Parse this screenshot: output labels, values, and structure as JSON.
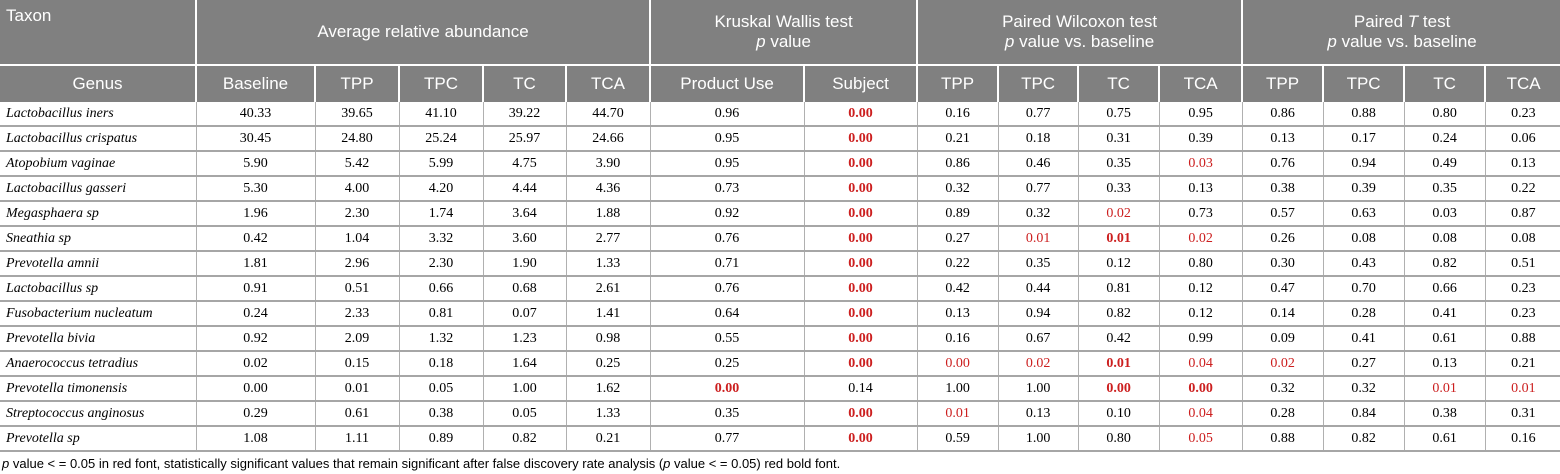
{
  "header": {
    "taxon": "Taxon",
    "avg": "Average relative abundance",
    "kw1": "Kruskal Wallis test",
    "kw2": "value",
    "wx1": "Paired Wilcoxon test",
    "wx2": "value vs. baseline",
    "tt1a": "Paired",
    "tt1b": "test",
    "tt2": "value vs. baseline",
    "p": "p",
    "t": "T"
  },
  "columns": [
    "Genus",
    "Baseline",
    "TPP",
    "TPC",
    "TC",
    "TCA",
    "Product Use",
    "Subject",
    "TPP",
    "TPC",
    "TC",
    "TCA",
    "TPP",
    "TPC",
    "TC",
    "TCA"
  ],
  "rows": [
    [
      "Lactobacillus iners",
      "40.33",
      "39.65",
      "41.10",
      "39.22",
      "44.70",
      "0.96",
      "0.00",
      "0.16",
      "0.77",
      "0.75",
      "0.95",
      "0.86",
      "0.88",
      "0.80",
      "0.23"
    ],
    [
      "Lactobacillus crispatus",
      "30.45",
      "24.80",
      "25.24",
      "25.97",
      "24.66",
      "0.95",
      "0.00",
      "0.21",
      "0.18",
      "0.31",
      "0.39",
      "0.13",
      "0.17",
      "0.24",
      "0.06"
    ],
    [
      "Atopobium vaginae",
      "5.90",
      "5.42",
      "5.99",
      "4.75",
      "3.90",
      "0.95",
      "0.00",
      "0.86",
      "0.46",
      "0.35",
      "0.03",
      "0.76",
      "0.94",
      "0.49",
      "0.13"
    ],
    [
      "Lactobacillus gasseri",
      "5.30",
      "4.00",
      "4.20",
      "4.44",
      "4.36",
      "0.73",
      "0.00",
      "0.32",
      "0.77",
      "0.33",
      "0.13",
      "0.38",
      "0.39",
      "0.35",
      "0.22"
    ],
    [
      "Megasphaera sp",
      "1.96",
      "2.30",
      "1.74",
      "3.64",
      "1.88",
      "0.92",
      "0.00",
      "0.89",
      "0.32",
      "0.02",
      "0.73",
      "0.57",
      "0.63",
      "0.03",
      "0.87"
    ],
    [
      "Sneathia sp",
      "0.42",
      "1.04",
      "3.32",
      "3.60",
      "2.77",
      "0.76",
      "0.00",
      "0.27",
      "0.01",
      "0.01",
      "0.02",
      "0.26",
      "0.08",
      "0.08",
      "0.08"
    ],
    [
      "Prevotella amnii",
      "1.81",
      "2.96",
      "2.30",
      "1.90",
      "1.33",
      "0.71",
      "0.00",
      "0.22",
      "0.35",
      "0.12",
      "0.80",
      "0.30",
      "0.43",
      "0.82",
      "0.51"
    ],
    [
      "Lactobacillus sp",
      "0.91",
      "0.51",
      "0.66",
      "0.68",
      "2.61",
      "0.76",
      "0.00",
      "0.42",
      "0.44",
      "0.81",
      "0.12",
      "0.47",
      "0.70",
      "0.66",
      "0.23"
    ],
    [
      "Fusobacterium nucleatum",
      "0.24",
      "2.33",
      "0.81",
      "0.07",
      "1.41",
      "0.64",
      "0.00",
      "0.13",
      "0.94",
      "0.82",
      "0.12",
      "0.14",
      "0.28",
      "0.41",
      "0.23"
    ],
    [
      "Prevotella bivia",
      "0.92",
      "2.09",
      "1.32",
      "1.23",
      "0.98",
      "0.55",
      "0.00",
      "0.16",
      "0.67",
      "0.42",
      "0.99",
      "0.09",
      "0.41",
      "0.61",
      "0.88"
    ],
    [
      "Anaerococcus tetradius",
      "0.02",
      "0.15",
      "0.18",
      "1.64",
      "0.25",
      "0.25",
      "0.00",
      "0.00",
      "0.02",
      "0.01",
      "0.04",
      "0.02",
      "0.27",
      "0.13",
      "0.21"
    ],
    [
      "Prevotella timonensis",
      "0.00",
      "0.01",
      "0.05",
      "1.00",
      "1.62",
      "0.00",
      "0.14",
      "1.00",
      "1.00",
      "0.00",
      "0.00",
      "0.32",
      "0.32",
      "0.01",
      "0.01"
    ],
    [
      "Streptococcus anginosus",
      "0.29",
      "0.61",
      "0.38",
      "0.05",
      "1.33",
      "0.35",
      "0.00",
      "0.01",
      "0.13",
      "0.10",
      "0.04",
      "0.28",
      "0.84",
      "0.38",
      "0.31"
    ],
    [
      "Prevotella sp",
      "1.08",
      "1.11",
      "0.89",
      "0.82",
      "0.21",
      "0.77",
      "0.00",
      "0.59",
      "1.00",
      "0.80",
      "0.05",
      "0.88",
      "0.82",
      "0.61",
      "0.16"
    ]
  ],
  "styles": [
    [
      "",
      "",
      "",
      "",
      "",
      "",
      "",
      "b",
      "",
      "",
      "",
      "",
      "",
      "",
      "",
      ""
    ],
    [
      "",
      "",
      "",
      "",
      "",
      "",
      "",
      "b",
      "",
      "",
      "",
      "",
      "",
      "",
      "",
      ""
    ],
    [
      "",
      "",
      "",
      "",
      "",
      "",
      "",
      "b",
      "",
      "",
      "",
      "r",
      "",
      "",
      "",
      ""
    ],
    [
      "",
      "",
      "",
      "",
      "",
      "",
      "",
      "b",
      "",
      "",
      "",
      "",
      "",
      "",
      "",
      ""
    ],
    [
      "",
      "",
      "",
      "",
      "",
      "",
      "",
      "b",
      "",
      "",
      "r",
      "",
      "",
      "",
      "",
      ""
    ],
    [
      "",
      "",
      "",
      "",
      "",
      "",
      "",
      "b",
      "",
      "r",
      "b",
      "r",
      "",
      "",
      "",
      ""
    ],
    [
      "",
      "",
      "",
      "",
      "",
      "",
      "",
      "b",
      "",
      "",
      "",
      "",
      "",
      "",
      "",
      ""
    ],
    [
      "",
      "",
      "",
      "",
      "",
      "",
      "",
      "b",
      "",
      "",
      "",
      "",
      "",
      "",
      "",
      ""
    ],
    [
      "",
      "",
      "",
      "",
      "",
      "",
      "",
      "b",
      "",
      "",
      "",
      "",
      "",
      "",
      "",
      ""
    ],
    [
      "",
      "",
      "",
      "",
      "",
      "",
      "",
      "b",
      "",
      "",
      "",
      "",
      "",
      "",
      "",
      ""
    ],
    [
      "",
      "",
      "",
      "",
      "",
      "",
      "",
      "b",
      "r",
      "r",
      "b",
      "r",
      "r",
      "",
      "",
      ""
    ],
    [
      "",
      "",
      "",
      "",
      "",
      "",
      "b",
      "",
      "",
      "",
      "b",
      "b",
      "",
      "",
      "r",
      "r"
    ],
    [
      "",
      "",
      "",
      "",
      "",
      "",
      "",
      "b",
      "r",
      "",
      "",
      "r",
      "",
      "",
      "",
      ""
    ],
    [
      "",
      "",
      "",
      "",
      "",
      "",
      "",
      "b",
      "",
      "",
      "",
      "r",
      "",
      "",
      "",
      ""
    ]
  ],
  "colors": {
    "header_bg": "#808080",
    "header_text": "#ffffff",
    "significant": "#cc1f1f"
  },
  "footnote": {
    "p1": "p",
    "t1": " value < = 0.05 in red font, statistically significant values that remain significant after false discovery rate analysis (",
    "p2": "p",
    "t2": " value < = 0.05) red bold font."
  }
}
